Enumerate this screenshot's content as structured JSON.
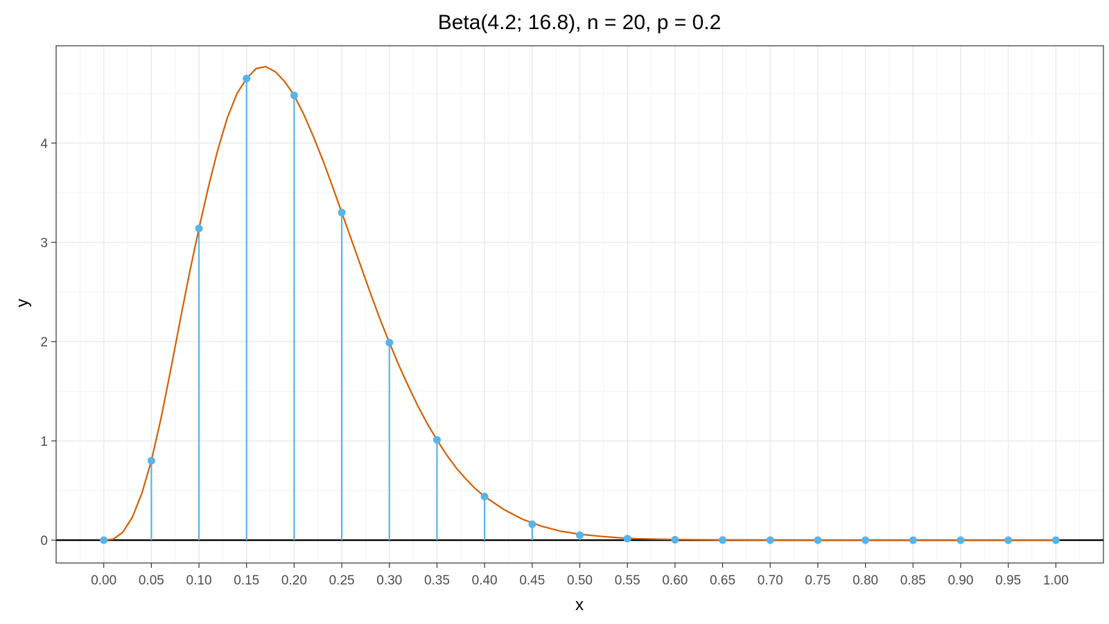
{
  "chart_data": {
    "type": "line",
    "title": "Beta(4.2; 16.8), n = 20, p = 0.2",
    "xlabel": "x",
    "ylabel": "y",
    "xlim": [
      -0.05,
      1.05
    ],
    "ylim": [
      -0.23,
      4.98
    ],
    "x_ticks": [
      0,
      0.05,
      0.1,
      0.15,
      0.2,
      0.25,
      0.3,
      0.35,
      0.4,
      0.45,
      0.5,
      0.55,
      0.6,
      0.65,
      0.7,
      0.75,
      0.8,
      0.85,
      0.9,
      0.95,
      1.0
    ],
    "x_tick_labels": [
      "0.00",
      "0.05",
      "0.10",
      "0.15",
      "0.20",
      "0.25",
      "0.30",
      "0.35",
      "0.40",
      "0.45",
      "0.50",
      "0.55",
      "0.60",
      "0.65",
      "0.70",
      "0.75",
      "0.80",
      "0.85",
      "0.90",
      "0.95",
      "1.00"
    ],
    "y_ticks": [
      0,
      1,
      2,
      3,
      4
    ],
    "y_tick_labels": [
      "0",
      "1",
      "2",
      "3",
      "4"
    ],
    "grid": true,
    "legend": "none",
    "series": [
      {
        "kind": "curve",
        "color": "#d55e00",
        "x": [
          0,
          0.01,
          0.02,
          0.03,
          0.04,
          0.05,
          0.06,
          0.07,
          0.08,
          0.09,
          0.1,
          0.11,
          0.12,
          0.13,
          0.14,
          0.15,
          0.16,
          0.17,
          0.18,
          0.19,
          0.2,
          0.21,
          0.22,
          0.23,
          0.24,
          0.25,
          0.26,
          0.27,
          0.28,
          0.29,
          0.3,
          0.31,
          0.32,
          0.33,
          0.34,
          0.35,
          0.36,
          0.37,
          0.38,
          0.39,
          0.4,
          0.42,
          0.44,
          0.46,
          0.48,
          0.5,
          0.52,
          0.54,
          0.56,
          0.58,
          0.6,
          0.65,
          0.7,
          0.75,
          0.8,
          0.85,
          0.9,
          0.95,
          1.0
        ],
        "y": [
          0,
          0.01,
          0.08,
          0.23,
          0.47,
          0.8,
          1.22,
          1.7,
          2.2,
          2.69,
          3.14,
          3.56,
          3.94,
          4.26,
          4.5,
          4.65,
          4.75,
          4.77,
          4.72,
          4.62,
          4.48,
          4.29,
          4.07,
          3.83,
          3.57,
          3.3,
          3.03,
          2.76,
          2.49,
          2.23,
          1.99,
          1.76,
          1.55,
          1.35,
          1.17,
          1.01,
          0.86,
          0.73,
          0.62,
          0.52,
          0.44,
          0.31,
          0.21,
          0.14,
          0.09,
          0.06,
          0.04,
          0.025,
          0.015,
          0.01,
          0.006,
          0.002,
          0.001,
          0,
          0,
          0,
          0,
          0,
          0
        ]
      },
      {
        "kind": "stem",
        "color": "#56b4e9",
        "x": [
          0,
          0.05,
          0.1,
          0.15,
          0.2,
          0.25,
          0.3,
          0.35,
          0.4,
          0.45,
          0.5,
          0.55,
          0.6,
          0.65,
          0.7,
          0.75,
          0.8,
          0.85,
          0.9,
          0.95,
          1.0
        ],
        "y": [
          0,
          0.8,
          3.14,
          4.65,
          4.48,
          3.3,
          1.99,
          1.01,
          0.44,
          0.16,
          0.05,
          0.015,
          0.004,
          0.001,
          0,
          0,
          0,
          0,
          0,
          0,
          0
        ]
      }
    ]
  }
}
